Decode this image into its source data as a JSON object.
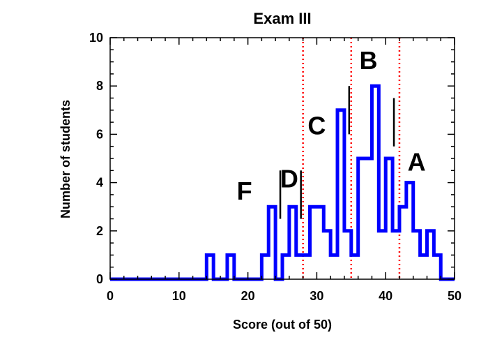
{
  "chart_data": {
    "type": "histogram",
    "title": "Exam III",
    "xlabel": "Score (out of 50)",
    "ylabel": "Number of students",
    "xlim": [
      0,
      50
    ],
    "ylim": [
      0,
      10
    ],
    "xticks": [
      0,
      10,
      20,
      30,
      40,
      50
    ],
    "yticks": [
      0,
      2,
      4,
      6,
      8,
      10
    ],
    "bin_width": 1,
    "bins": [
      {
        "x": 13,
        "y": 0
      },
      {
        "x": 14,
        "y": 1
      },
      {
        "x": 15,
        "y": 0
      },
      {
        "x": 16,
        "y": 0
      },
      {
        "x": 17,
        "y": 1
      },
      {
        "x": 18,
        "y": 0
      },
      {
        "x": 19,
        "y": 0
      },
      {
        "x": 20,
        "y": 0
      },
      {
        "x": 21,
        "y": 0
      },
      {
        "x": 22,
        "y": 1
      },
      {
        "x": 23,
        "y": 3
      },
      {
        "x": 24,
        "y": 0
      },
      {
        "x": 25,
        "y": 1
      },
      {
        "x": 26,
        "y": 3
      },
      {
        "x": 27,
        "y": 1
      },
      {
        "x": 28,
        "y": 1
      },
      {
        "x": 29,
        "y": 3
      },
      {
        "x": 30,
        "y": 3
      },
      {
        "x": 31,
        "y": 2
      },
      {
        "x": 32,
        "y": 1
      },
      {
        "x": 33,
        "y": 7
      },
      {
        "x": 34,
        "y": 2
      },
      {
        "x": 35,
        "y": 1
      },
      {
        "x": 36,
        "y": 5
      },
      {
        "x": 37,
        "y": 5
      },
      {
        "x": 38,
        "y": 8
      },
      {
        "x": 39,
        "y": 2
      },
      {
        "x": 40,
        "y": 5
      },
      {
        "x": 41,
        "y": 2
      },
      {
        "x": 42,
        "y": 3
      },
      {
        "x": 43,
        "y": 4
      },
      {
        "x": 44,
        "y": 2
      },
      {
        "x": 45,
        "y": 1
      },
      {
        "x": 46,
        "y": 2
      },
      {
        "x": 47,
        "y": 1
      },
      {
        "x": 48,
        "y": 0
      }
    ],
    "dotted_lines_x": [
      28,
      35,
      42
    ],
    "short_lines": [
      {
        "x": 24.7,
        "y0": 2.5,
        "y1": 4.5
      },
      {
        "x": 27.7,
        "y0": 2.5,
        "y1": 4.5
      },
      {
        "x": 34.7,
        "y0": 6,
        "y1": 8
      },
      {
        "x": 41.2,
        "y0": 5.5,
        "y1": 7.5
      }
    ],
    "annotations": [
      {
        "text": "F",
        "x": 19.5,
        "y": 3.3
      },
      {
        "text": "D",
        "x": 26.0,
        "y": 3.8
      },
      {
        "text": "C",
        "x": 30.0,
        "y": 6.0
      },
      {
        "text": "B",
        "x": 37.5,
        "y": 8.7
      },
      {
        "text": "A",
        "x": 44.5,
        "y": 4.5
      }
    ],
    "colors": {
      "histogram": "#0000ff",
      "dotted_lines": "#ff0000",
      "axes": "#000000"
    }
  }
}
